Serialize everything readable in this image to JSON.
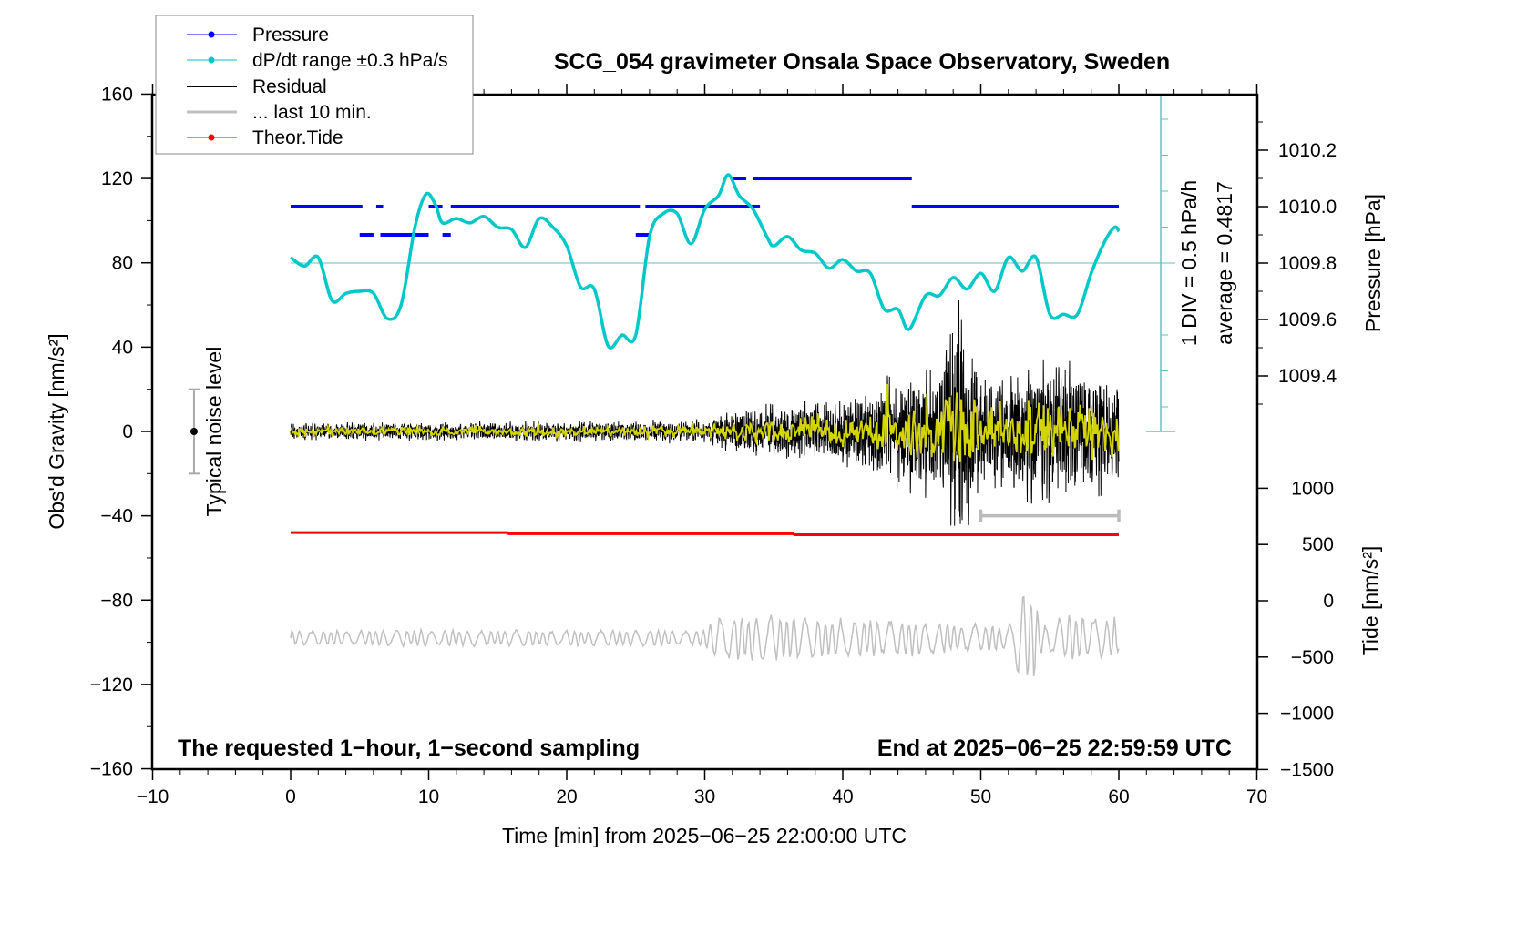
{
  "chart_data": {
    "type": "line",
    "title": "SCG_054 gravimeter Onsala Space Observatory, Sweden",
    "xlabel": "Time [min] from 2025−06−25 22:00:00 UTC",
    "ylabel_left": "Obs'd Gravity [nm/s²]",
    "ylabel_right_top": "Pressure [hPa]",
    "ylabel_right_bottom": "Tide [nm/s²]",
    "xlim": [
      -10,
      70
    ],
    "ylim": [
      -160,
      160
    ],
    "x_ticks": [
      "−10",
      "0",
      "10",
      "20",
      "30",
      "40",
      "50",
      "60",
      "70"
    ],
    "y_ticks": [
      "160",
      "120",
      "80",
      "40",
      "0",
      "−40",
      "−80",
      "−120",
      "−160"
    ],
    "pressure_ticks": [
      "1010.2",
      "1010.0",
      "1009.8",
      "1009.6",
      "1009.4"
    ],
    "tide_ticks": [
      "1000",
      "500",
      "0",
      "−500",
      "−1000",
      "−1500"
    ],
    "annotations": {
      "bottom_left": "The requested 1−hour, 1−second sampling",
      "bottom_right": "End at 2025−06−25 22:59:59 UTC",
      "noise_label": "Typical noise level",
      "div_label": "1 DIV = 0.5 hPa/h",
      "average_label": "average = 0.4817"
    },
    "legend": {
      "placement": "top-left",
      "entries": [
        "Pressure",
        "dP/dt range ±0.3 hPa/s",
        "Residual",
        "... last 10 min.",
        "Theor.Tide"
      ]
    },
    "colors": {
      "pressure": "#0000ff",
      "dpdt": "#00c8c8",
      "residual": "#000000",
      "residual_filtered": "#d4d400",
      "last10": "#c0c0c0",
      "tide": "#ff0000",
      "axis_cyan": "#66c0c0"
    },
    "series": {
      "pressure_segments_hPa": [
        {
          "x": [
            0,
            5.2
          ],
          "p": 1010.0
        },
        {
          "x": [
            6.2,
            6.7
          ],
          "p": 1010.0
        },
        {
          "x": [
            5,
            6
          ],
          "p": 1009.9
        },
        {
          "x": [
            6.5,
            10
          ],
          "p": 1009.9
        },
        {
          "x": [
            11,
            11.6
          ],
          "p": 1009.9
        },
        {
          "x": [
            10,
            11
          ],
          "p": 1010.0
        },
        {
          "x": [
            11.6,
            25.3
          ],
          "p": 1010.0
        },
        {
          "x": [
            25.7,
            32.5
          ],
          "p": 1010.0
        },
        {
          "x": [
            25,
            26
          ],
          "p": 1009.9
        },
        {
          "x": [
            32,
            33
          ],
          "p": 1010.1
        },
        {
          "x": [
            33.5,
            45
          ],
          "p": 1010.1
        },
        {
          "x": [
            32,
            34
          ],
          "p": 1010.0
        },
        {
          "x": [
            45,
            60
          ],
          "p": 1010.0
        }
      ],
      "dpdt_hPa_per_h": {
        "x": [
          0,
          1,
          2,
          3,
          4,
          5,
          6,
          7,
          8,
          9,
          9.8,
          10.5,
          11,
          12,
          13,
          14,
          15,
          16,
          17,
          18,
          19,
          20,
          21,
          22,
          23,
          24,
          25,
          26,
          27,
          28,
          29,
          30,
          31,
          31.7,
          32.5,
          33.5,
          34.5,
          35,
          36,
          37,
          38,
          39,
          40,
          41,
          42,
          43,
          44,
          44.8,
          46,
          47,
          48,
          49,
          50,
          51,
          52,
          53,
          54,
          55,
          56,
          57,
          58,
          59,
          59.7,
          60
        ],
        "y": [
          0.56,
          0.44,
          0.56,
          -0.04,
          0.06,
          0.09,
          0.06,
          -0.29,
          -0.1,
          0.98,
          1.44,
          1.29,
          1.04,
          1.1,
          1.04,
          1.13,
          0.98,
          0.95,
          0.7,
          1.1,
          0.98,
          0.72,
          0.15,
          0.12,
          -0.67,
          -0.52,
          -0.52,
          0.85,
          1.17,
          1.17,
          0.75,
          1.23,
          1.42,
          1.71,
          1.42,
          1.23,
          0.85,
          0.72,
          0.85,
          0.66,
          0.62,
          0.41,
          0.53,
          0.37,
          0.34,
          -0.16,
          -0.16,
          -0.44,
          0.03,
          0.03,
          0.28,
          0.12,
          0.34,
          0.09,
          0.56,
          0.37,
          0.56,
          -0.23,
          -0.23,
          -0.23,
          0.34,
          0.79,
          0.98,
          0.92
        ]
      },
      "residual_envelope_nm_s2": {
        "x": [
          0,
          30,
          33,
          40,
          43,
          47,
          48,
          50,
          55,
          60
        ],
        "amp": [
          4,
          5,
          12,
          15,
          25,
          35,
          70,
          25,
          35,
          25
        ]
      },
      "last10_envelope_nm_s2": {
        "x": [
          0,
          30,
          31,
          45,
          52,
          53.5,
          54.5,
          56,
          60
        ],
        "amp": [
          4,
          4,
          12,
          9,
          6,
          30,
          6,
          12,
          10
        ],
        "baseline": -98
      },
      "tide_nm_s2": {
        "x": [
          0,
          15.7,
          15.8,
          36.4,
          36.5,
          60
        ],
        "y": [
          -48,
          -48,
          -48.5,
          -48.5,
          -49,
          -49
        ]
      },
      "noise_bar": {
        "x": -7,
        "range": [
          -20,
          20
        ]
      },
      "last10_bar": {
        "x": [
          50,
          60
        ],
        "y": -40
      }
    }
  }
}
